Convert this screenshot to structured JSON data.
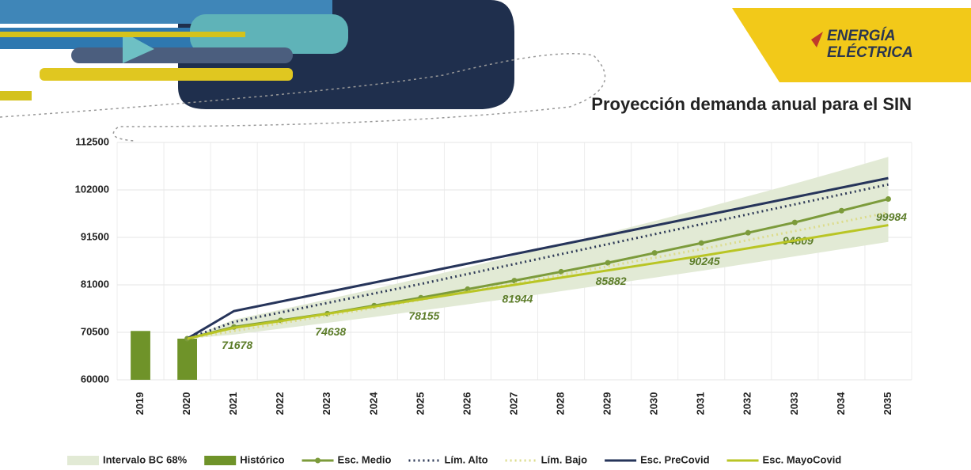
{
  "brand": {
    "line1": "ENERGÍA",
    "line2": "ELÉCTRICA"
  },
  "chart_data": {
    "type": "combo",
    "title": "Proyección demanda anual para el SIN",
    "categories": [
      "2019",
      "2020",
      "2021",
      "2022",
      "2023",
      "2024",
      "2025",
      "2026",
      "2027",
      "2028",
      "2029",
      "2030",
      "2031",
      "2032",
      "2033",
      "2034",
      "2035"
    ],
    "ylim": [
      60000,
      112500
    ],
    "yticks": [
      60000,
      70500,
      81000,
      91500,
      102000,
      112500
    ],
    "grid": true,
    "series": [
      {
        "name": "Intervalo BC 68%",
        "type": "range",
        "color": "#e2ead5",
        "lower": [
          null,
          69100,
          70000,
          71300,
          72600,
          73900,
          75300,
          76700,
          78100,
          79600,
          81100,
          82600,
          84100,
          85700,
          87300,
          88900,
          90500
        ],
        "upper": [
          null,
          69100,
          73300,
          75500,
          77800,
          80100,
          82500,
          84900,
          87400,
          89900,
          92500,
          95100,
          97800,
          100600,
          103400,
          106300,
          109300
        ]
      },
      {
        "name": "Histórico",
        "type": "bar",
        "color": "#6f9329",
        "values": [
          70800,
          69100,
          null,
          null,
          null,
          null,
          null,
          null,
          null,
          null,
          null,
          null,
          null,
          null,
          null,
          null,
          null
        ]
      },
      {
        "name": "Esc. Medio",
        "type": "line",
        "color": "#7c9b3b",
        "markers": true,
        "values": [
          null,
          69100,
          71678,
          73150,
          74638,
          76400,
          78155,
          80050,
          81944,
          83900,
          85882,
          88060,
          90245,
          92520,
          94809,
          97400,
          99984
        ],
        "value_labels": [
          null,
          null,
          "71678",
          null,
          "74638",
          null,
          "78155",
          null,
          "81944",
          null,
          "85882",
          null,
          "90245",
          null,
          "94809",
          null,
          "99984"
        ]
      },
      {
        "name": "Lím. Alto",
        "type": "line",
        "color": "#2f3b58",
        "style": "dotted",
        "values": [
          null,
          69100,
          72800,
          74900,
          77000,
          79100,
          81200,
          83400,
          85600,
          87800,
          90000,
          92200,
          94400,
          96600,
          98800,
          101000,
          103200
        ]
      },
      {
        "name": "Lím. Bajo",
        "type": "line",
        "color": "#dcdc8c",
        "style": "dotted",
        "values": [
          null,
          69100,
          70800,
          72500,
          74200,
          75900,
          77700,
          79500,
          81300,
          83200,
          85100,
          87000,
          88900,
          90900,
          92900,
          94900,
          97000
        ]
      },
      {
        "name": "Esc. PreCovid",
        "type": "line",
        "color": "#26345a",
        "values": [
          null,
          69100,
          75200,
          77300,
          79400,
          81500,
          83600,
          85700,
          87800,
          89900,
          92000,
          94100,
          96200,
          98300,
          100400,
          102500,
          104600
        ]
      },
      {
        "name": "Esc. MayoCovid",
        "type": "line",
        "color": "#b9c525",
        "values": [
          null,
          69100,
          71500,
          73000,
          74600,
          76200,
          77800,
          79400,
          81000,
          82600,
          84200,
          85800,
          87400,
          89100,
          90800,
          92500,
          94200
        ]
      }
    ]
  }
}
